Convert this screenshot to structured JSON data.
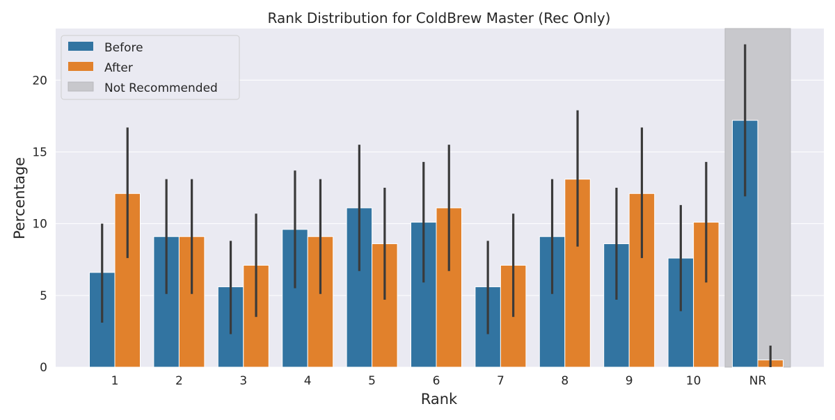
{
  "chart_data": {
    "type": "bar",
    "title": "Rank Distribution for ColdBrew Master (Rec Only)",
    "xlabel": "Rank",
    "ylabel": "Percentage",
    "categories": [
      "1",
      "2",
      "3",
      "4",
      "5",
      "6",
      "7",
      "8",
      "9",
      "10",
      "NR"
    ],
    "ylim": [
      0,
      23.6
    ],
    "yticks": [
      0,
      5,
      10,
      15,
      20
    ],
    "grid": true,
    "legend_position": "top-left",
    "series": [
      {
        "name": "Before",
        "color": "#3274a1",
        "values": [
          6.6,
          9.1,
          5.6,
          9.6,
          11.1,
          10.1,
          5.6,
          9.1,
          8.6,
          7.6,
          17.2
        ],
        "ci_low": [
          3.1,
          5.1,
          2.3,
          5.5,
          6.7,
          5.9,
          2.3,
          5.1,
          4.7,
          3.9,
          11.9
        ],
        "ci_high": [
          10.0,
          13.1,
          8.8,
          13.7,
          15.5,
          14.3,
          8.8,
          13.1,
          12.5,
          11.3,
          22.5
        ]
      },
      {
        "name": "After",
        "color": "#e1812c",
        "values": [
          12.1,
          9.1,
          7.1,
          9.1,
          8.6,
          11.1,
          7.1,
          13.1,
          12.1,
          10.1,
          0.5
        ],
        "ci_low": [
          7.6,
          5.1,
          3.5,
          5.1,
          4.7,
          6.7,
          3.5,
          8.4,
          7.6,
          5.9,
          0.0
        ],
        "ci_high": [
          16.7,
          13.1,
          10.7,
          13.1,
          12.5,
          15.5,
          10.7,
          17.9,
          16.7,
          14.3,
          1.5
        ]
      }
    ],
    "highlight": {
      "label": "Not Recommended",
      "category": "NR",
      "color": "#c8c8cc"
    }
  },
  "colors": {
    "plot_background": "#eaeaf2",
    "grid": "#ffffff",
    "error_bar": "#3a3a3a",
    "text": "#262626"
  }
}
